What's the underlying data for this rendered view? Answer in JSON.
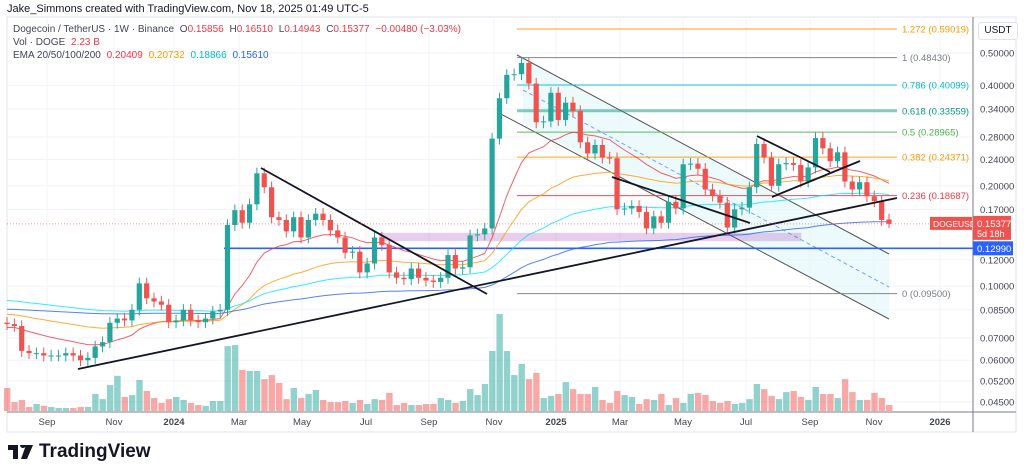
{
  "credit": "Jake_Simmons created with TradingView.com, Nov 18, 2025 01:49 UTC-5",
  "legend": {
    "symbol": "Dogecoin / TetherUS · 1W · Binance",
    "o_label": "O",
    "o": "0.15856",
    "h_label": "H",
    "h": "0.16510",
    "l_label": "L",
    "l": "0.14943",
    "c_label": "C",
    "c": "0.15377",
    "change": "−0.00480 (−3.03%)",
    "vol_label": "Vol · DOGE",
    "vol": "2.23 B",
    "ema_label": "EMA 20/50/100/200",
    "ema20": "0.20409",
    "ema50": "0.20732",
    "ema100": "0.18866",
    "ema200": "0.15610"
  },
  "brand": "TradingView",
  "colors": {
    "up": "#26a69a",
    "down": "#ef5350",
    "ema20": "#f23645",
    "ema50": "#ff9800",
    "ema100": "#00e5ff",
    "ema200": "#2962ff",
    "support": "#2962ff"
  },
  "chart_data": {
    "type": "candlestick",
    "interval": "1W",
    "scale": "log",
    "grid": true,
    "currency": "USDT",
    "y_ticks": [
      "0.50000",
      "0.40000",
      "0.34000",
      "0.28000",
      "0.24000",
      "0.20000",
      "0.17000",
      "0.12000",
      "0.10000",
      "0.08500",
      "0.07000",
      "0.06000",
      "0.05200",
      "0.04500"
    ],
    "x_ticks": [
      "Sep",
      "Nov",
      "2024",
      "Mar",
      "May",
      "Jul",
      "Sep",
      "Nov",
      "2025",
      "Mar",
      "May",
      "Jul",
      "Sep",
      "Nov",
      "2026"
    ],
    "closes": [
      0.077,
      0.076,
      0.064,
      0.063,
      0.063,
      0.062,
      0.062,
      0.062,
      0.063,
      0.062,
      0.06,
      0.061,
      0.066,
      0.068,
      0.0777,
      0.08,
      0.079,
      0.085,
      0.102,
      0.092,
      0.09,
      0.088,
      0.078,
      0.079,
      0.085,
      0.079,
      0.078,
      0.08,
      0.084,
      0.085,
      0.1526,
      0.169,
      0.155,
      0.176,
      0.218,
      0.198,
      0.161,
      0.158,
      0.146,
      0.161,
      0.14,
      0.158,
      0.165,
      0.158,
      0.147,
      0.14,
      0.126,
      0.127,
      0.11,
      0.117,
      0.14,
      0.133,
      0.11,
      0.106,
      0.105,
      0.113,
      0.106,
      0.104,
      0.103,
      0.106,
      0.124,
      0.113,
      0.114,
      0.142,
      0.143,
      0.149,
      0.277,
      0.366,
      0.43,
      0.432,
      0.467,
      0.405,
      0.31,
      0.312,
      0.38,
      0.315,
      0.355,
      0.335,
      0.27,
      0.25,
      0.265,
      0.243,
      0.242,
      0.17,
      0.171,
      0.174,
      0.167,
      0.149,
      0.162,
      0.155,
      0.179,
      0.171,
      0.232,
      0.233,
      0.225,
      0.195,
      0.187,
      0.178,
      0.15,
      0.17,
      0.172,
      0.198,
      0.267,
      0.243,
      0.2,
      0.232,
      0.234,
      0.231,
      0.206,
      0.227,
      0.278,
      0.259,
      0.237,
      0.252,
      0.206,
      0.195,
      0.205,
      0.186,
      0.18,
      0.158,
      0.15377
    ],
    "volumes_b": [
      8.5,
      3.3,
      4.1,
      1.5,
      2.6,
      1.9,
      1.5,
      1.1,
      1.1,
      1.1,
      1.5,
      1.5,
      6.3,
      4.4,
      9.6,
      13,
      5.2,
      5.9,
      11.5,
      7.4,
      4.8,
      3,
      4.4,
      5.2,
      4.1,
      3,
      2.2,
      1.9,
      3.7,
      3.7,
      24,
      24.4,
      15.2,
      14.8,
      14.8,
      11.8,
      13.3,
      10.4,
      4.4,
      8.5,
      4.8,
      6.3,
      7.8,
      4.1,
      3.3,
      3.3,
      3.7,
      3,
      4.1,
      2.6,
      4.4,
      4.1,
      6.7,
      2.2,
      3,
      2.2,
      2.2,
      2.6,
      2.6,
      4.8,
      4.1,
      3,
      3.7,
      8.1,
      5.9,
      10,
      22.2,
      35.9,
      22.2,
      13.3,
      17.4,
      11.8,
      14.1,
      4.8,
      5.6,
      6.3,
      10.7,
      8.1,
      6.3,
      6.3,
      8.9,
      4.1,
      3,
      7.4,
      5.9,
      5.2,
      2.6,
      4.4,
      4.1,
      6.3,
      2.2,
      4.8,
      3,
      6.3,
      6.7,
      5.9,
      3.7,
      3,
      3.7,
      2.6,
      3,
      4.4,
      10,
      8.1,
      5.6,
      4.4,
      7,
      7.4,
      5.2,
      4.1,
      8.9,
      6.3,
      6.3,
      4.8,
      11.8,
      7,
      4.1,
      4.1,
      6.7,
      4.8,
      2.23
    ],
    "last_candle": {
      "open": 0.15856,
      "high": 0.1651,
      "low": 0.14943,
      "close": 0.15377
    },
    "ema_start": {
      "ema20": 0.075,
      "ema50": 0.0826,
      "ema100": 0.0909,
      "ema200": 0.0854
    },
    "fib_levels": [
      {
        "label": "1.272 (0.59019)",
        "price": 0.59019,
        "color": "#ff9800"
      },
      {
        "label": "1 (0.48430)",
        "price": 0.4843,
        "color": "#787b86"
      },
      {
        "label": "0.786 (0.40099)",
        "price": 0.40099,
        "color": "#00bcd4"
      },
      {
        "label": "0.618 (0.33559)",
        "price": 0.33559,
        "color": "#089981"
      },
      {
        "label": "0.5 (0.28965)",
        "price": 0.28965,
        "color": "#4caf50"
      },
      {
        "label": "0.382 (0.24371)",
        "price": 0.24371,
        "color": "#ff9800"
      },
      {
        "label": "0.236 (0.18687)",
        "price": 0.18687,
        "color": "#f23645"
      },
      {
        "label": "0 (0.09500)",
        "price": 0.095,
        "color": "#787b86"
      }
    ],
    "support_line": {
      "price": 0.1299,
      "label": "0.12990"
    },
    "price_tag": {
      "symbol": "DOGEUSDT",
      "price": "0.15377",
      "countdown": "5d 18h"
    }
  }
}
